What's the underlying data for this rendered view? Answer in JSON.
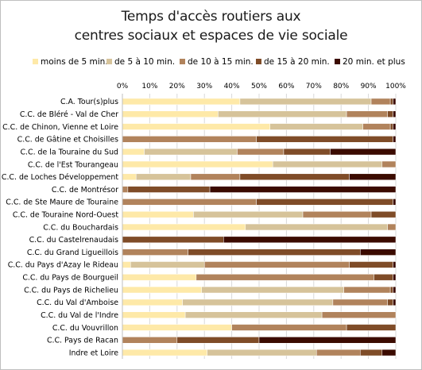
{
  "chart_data": {
    "type": "bar",
    "orientation": "horizontal",
    "stacked": "percent",
    "title_lines": [
      "Temps d'accès routiers aux",
      "centres sociaux et espaces de vie sociale"
    ],
    "xlim": [
      0,
      100
    ],
    "x_ticks": [
      "0%",
      "10%",
      "20%",
      "30%",
      "40%",
      "50%",
      "60%",
      "70%",
      "80%",
      "90%",
      "100%"
    ],
    "grid": true,
    "legend_position": "top",
    "categories": [
      "C.A. Tour(s)plus",
      "C.C. de Bléré - Val de Cher",
      "C.C. de Chinon, Vienne et Loire",
      "C.C. de Gâtine et Choisilles",
      "C.C. de la Touraine du Sud",
      "C.C. de l'Est Tourangeau",
      "C.C. de Loches Développement",
      "C.C. de Montrésor",
      "C.C. de Ste Maure de Touraine",
      "C.C. de Touraine Nord-Ouest",
      "C.C. du Bouchardais",
      "C.C. du Castelrenaudais",
      "C.C. du Grand Ligueillois",
      "C.C. du Pays d'Azay le Rideau",
      "C.C. du Pays de Bourgueil",
      "C.C. du Pays de Richelieu",
      "C.C. du Val d'Amboise",
      "C.C. du Val de l'Indre",
      "C.C. du Vouvrillon",
      "C.C. Pays de Racan",
      "Indre et Loire"
    ],
    "series": [
      {
        "name": "moins de 5 min.",
        "color": "#fee9a8",
        "values": [
          43,
          35,
          54,
          0,
          8,
          55,
          5,
          0,
          0,
          26,
          45,
          0,
          0,
          3,
          27,
          29,
          22,
          23,
          40,
          0,
          31
        ]
      },
      {
        "name": "de 5 à 10 min.",
        "color": "#d6c39a",
        "values": [
          48,
          47,
          34,
          0,
          34,
          40,
          20,
          0,
          0,
          40,
          52,
          0,
          0,
          27,
          0,
          52,
          55,
          50,
          0,
          0,
          40
        ]
      },
      {
        "name": "de 10 à 15 min.",
        "color": "#b1835c",
        "values": [
          7,
          15,
          10,
          49,
          17,
          5,
          18,
          2,
          49,
          25,
          3,
          0,
          24,
          53,
          65,
          17,
          20,
          27,
          42,
          20,
          16
        ]
      },
      {
        "name": "de 15 à 20 min.",
        "color": "#7f4c28",
        "values": [
          1,
          2,
          1,
          50,
          17,
          0,
          40,
          30,
          50,
          9,
          0,
          37,
          63,
          16,
          7,
          1,
          2,
          0,
          18,
          30,
          8
        ]
      },
      {
        "name": "20 min. et plus",
        "color": "#3b0b00",
        "values": [
          1,
          1,
          1,
          1,
          24,
          0,
          17,
          68,
          1,
          0,
          0,
          63,
          13,
          1,
          1,
          1,
          1,
          0,
          0,
          50,
          5
        ]
      }
    ]
  }
}
